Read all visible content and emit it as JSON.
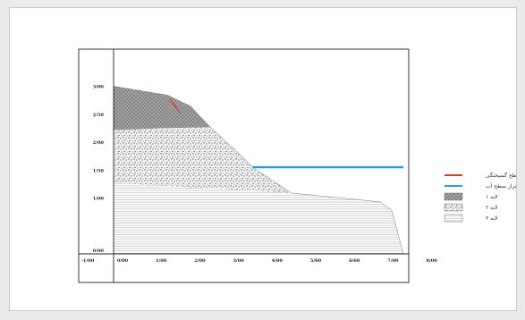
{
  "chart_data": {
    "type": "area",
    "x_ticks": [
      "-1/00",
      "0/00",
      "1/00",
      "2/00",
      "3/00",
      "4/00",
      "5/00",
      "6/00",
      "7/00",
      "8/00"
    ],
    "y_ticks": [
      "3/00",
      "2/50",
      "2/00",
      "1/50",
      "1/00",
      "0/00"
    ],
    "xlim": [
      -1,
      8.3
    ],
    "ylim": [
      0,
      3.45
    ],
    "layers": [
      {
        "name": "لایه ۱",
        "pattern": "woven",
        "top": [
          [
            0,
            3.0
          ],
          [
            1.4,
            2.84
          ],
          [
            2.0,
            2.64
          ],
          [
            2.5,
            2.27
          ]
        ],
        "base": [
          [
            0,
            2.22
          ],
          [
            2.5,
            2.27
          ]
        ]
      },
      {
        "name": "لایه ۲",
        "pattern": "gravel",
        "top": [
          [
            0,
            2.22
          ],
          [
            2.5,
            2.27
          ],
          [
            3.3,
            1.76
          ],
          [
            3.6,
            1.55
          ],
          [
            4.6,
            1.09
          ]
        ],
        "base": [
          [
            0,
            1.27
          ],
          [
            4.6,
            1.09
          ]
        ]
      },
      {
        "name": "لایه ۳",
        "pattern": "lines",
        "top": [
          [
            0,
            1.27
          ],
          [
            4.6,
            1.09
          ],
          [
            6.9,
            0.93
          ],
          [
            7.2,
            0.78
          ],
          [
            7.5,
            0.0
          ]
        ],
        "base": [
          [
            0,
            0.0
          ],
          [
            7.5,
            0.0
          ]
        ]
      }
    ],
    "lines": [
      {
        "name": "سطح گسیختگی",
        "color": "#d2402a",
        "points": [
          [
            1.45,
            2.78
          ],
          [
            1.72,
            2.52
          ]
        ]
      },
      {
        "name": "تراز سطح آب",
        "color": "#2a9ed8",
        "points": [
          [
            3.6,
            1.55
          ],
          [
            7.5,
            1.55
          ]
        ]
      }
    ],
    "legend": [
      {
        "kind": "line",
        "color": "#d2402a",
        "label": "سطح گسیختگی"
      },
      {
        "kind": "line",
        "color": "#2a9ed8",
        "label": "تراز سطح آب"
      },
      {
        "kind": "pattern",
        "pattern": "woven",
        "label": "لایه ۱"
      },
      {
        "kind": "pattern",
        "pattern": "gravel",
        "label": "لایه ۲"
      },
      {
        "kind": "pattern",
        "pattern": "lines",
        "label": "لایه ۳"
      }
    ],
    "legend_position": "right",
    "grid": false
  }
}
